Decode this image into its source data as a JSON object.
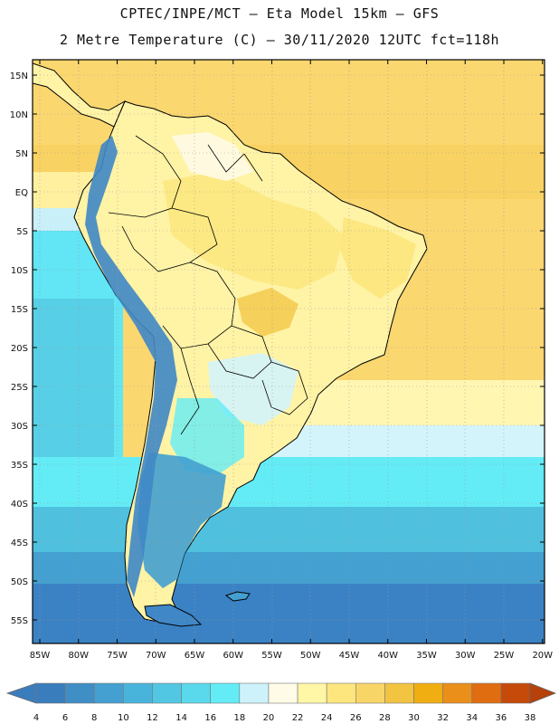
{
  "header": {
    "line1": "CPTEC/INPE/MCT –  Eta Model 15km – GFS",
    "line2": "2 Metre Temperature (C) – 30/11/2020 12UTC fct=118h"
  },
  "map": {
    "region": "South America",
    "lat_labels": [
      "15N",
      "10N",
      "5N",
      "EQ",
      "5S",
      "10S",
      "15S",
      "20S",
      "25S",
      "30S",
      "35S",
      "40S",
      "45S",
      "50S",
      "55S"
    ],
    "lon_labels": [
      "85W",
      "80W",
      "75W",
      "70W",
      "65W",
      "60W",
      "55W",
      "50W",
      "45W",
      "40W",
      "35W",
      "30W",
      "25W",
      "20W"
    ]
  },
  "legend": {
    "values": [
      "4",
      "6",
      "8",
      "10",
      "12",
      "14",
      "16",
      "18",
      "20",
      "22",
      "24",
      "26",
      "28",
      "30",
      "32",
      "34",
      "36",
      "38"
    ],
    "colors": [
      "#3a7dbd",
      "#3f8ec6",
      "#43a0d0",
      "#49b4db",
      "#52c7e3",
      "#5bd9ec",
      "#63ecf6",
      "#cdf2fb",
      "#fffbe6",
      "#fff6a6",
      "#fde67d",
      "#f8d567",
      "#f2c441",
      "#f0ae13",
      "#ea8f1a",
      "#e06d10",
      "#c64a0a",
      "#b6410a"
    ]
  },
  "colors": {
    "ocean_warm": "#fbd76f",
    "ocean_hot": "#f3c64c",
    "land_warm": "#fff3a6",
    "land_cool": "#fffbe6",
    "ocean_cold": "#3b82c4",
    "ocean_cyan": "#5fe3f3",
    "andes": "#3f87c7"
  }
}
